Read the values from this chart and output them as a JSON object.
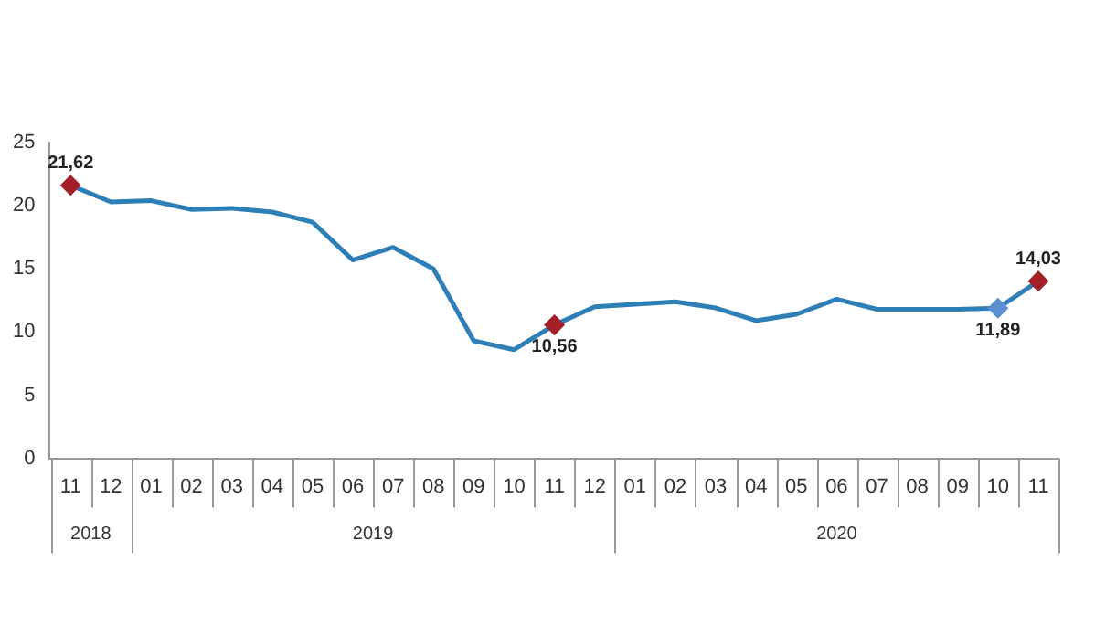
{
  "chart_data": {
    "type": "line",
    "x": [
      "2018-11",
      "2018-12",
      "2019-01",
      "2019-02",
      "2019-03",
      "2019-04",
      "2019-05",
      "2019-06",
      "2019-07",
      "2019-08",
      "2019-09",
      "2019-10",
      "2019-11",
      "2019-12",
      "2020-01",
      "2020-02",
      "2020-03",
      "2020-04",
      "2020-05",
      "2020-06",
      "2020-07",
      "2020-08",
      "2020-09",
      "2020-10",
      "2020-11"
    ],
    "xticks": [
      {
        "value": "2018-11",
        "label": "11"
      },
      {
        "value": "2018-12",
        "label": "12"
      },
      {
        "value": "2019-01",
        "label": "01"
      },
      {
        "value": "2019-02",
        "label": "02"
      },
      {
        "value": "2019-03",
        "label": "03"
      },
      {
        "value": "2019-04",
        "label": "04"
      },
      {
        "value": "2019-05",
        "label": "05"
      },
      {
        "value": "2019-06",
        "label": "06"
      },
      {
        "value": "2019-07",
        "label": "07"
      },
      {
        "value": "2019-08",
        "label": "08"
      },
      {
        "value": "2019-09",
        "label": "09"
      },
      {
        "value": "2019-10",
        "label": "10"
      },
      {
        "value": "2019-11",
        "label": "11"
      },
      {
        "value": "2019-12",
        "label": "12"
      },
      {
        "value": "2020-01",
        "label": "01"
      },
      {
        "value": "2020-02",
        "label": "02"
      },
      {
        "value": "2020-03",
        "label": "03"
      },
      {
        "value": "2020-04",
        "label": "04"
      },
      {
        "value": "2020-05",
        "label": "05"
      },
      {
        "value": "2020-06",
        "label": "06"
      },
      {
        "value": "2020-07",
        "label": "07"
      },
      {
        "value": "2020-08",
        "label": "08"
      },
      {
        "value": "2020-09",
        "label": "09"
      },
      {
        "value": "2020-10",
        "label": "10"
      },
      {
        "value": "2020-11",
        "label": "11"
      }
    ],
    "xlim": [
      "2018-10-16",
      "2020-11-16"
    ],
    "annotations": [
      "2018",
      "2019",
      "2020"
    ],
    "ylim": [
      0,
      25
    ],
    "yticks": [
      0,
      5,
      10,
      15,
      20,
      25
    ],
    "grid": false,
    "legend": false,
    "series": [
      {
        "color": "#2e7fb8",
        "values": [
          21.62,
          20.3,
          20.4,
          19.7,
          19.8,
          19.5,
          18.7,
          15.7,
          16.7,
          15.0,
          9.3,
          8.6,
          10.56,
          12.0,
          12.2,
          12.4,
          11.9,
          10.9,
          11.4,
          12.6,
          11.8,
          11.8,
          11.8,
          11.89,
          14.03
        ],
        "value_labels": [
          "21,62",
          null,
          null,
          null,
          null,
          null,
          null,
          null,
          null,
          null,
          null,
          null,
          "10,56",
          null,
          null,
          null,
          null,
          null,
          null,
          null,
          null,
          null,
          null,
          "11,89",
          "14,03"
        ],
        "colors": [
          "#a31f2a",
          "#2e7fb8",
          "#2e7fb8",
          "#2e7fb8",
          "#2e7fb8",
          "#2e7fb8",
          "#2e7fb8",
          "#2e7fb8",
          "#2e7fb8",
          "#2e7fb8",
          "#2e7fb8",
          "#2e7fb8",
          "#a31f2a",
          "#2e7fb8",
          "#2e7fb8",
          "#2e7fb8",
          "#2e7fb8",
          "#2e7fb8",
          "#2e7fb8",
          "#2e7fb8",
          "#2e7fb8",
          "#2e7fb8",
          "#2e7fb8",
          "#5b8fd0",
          "#a31f2a"
        ]
      }
    ]
  }
}
